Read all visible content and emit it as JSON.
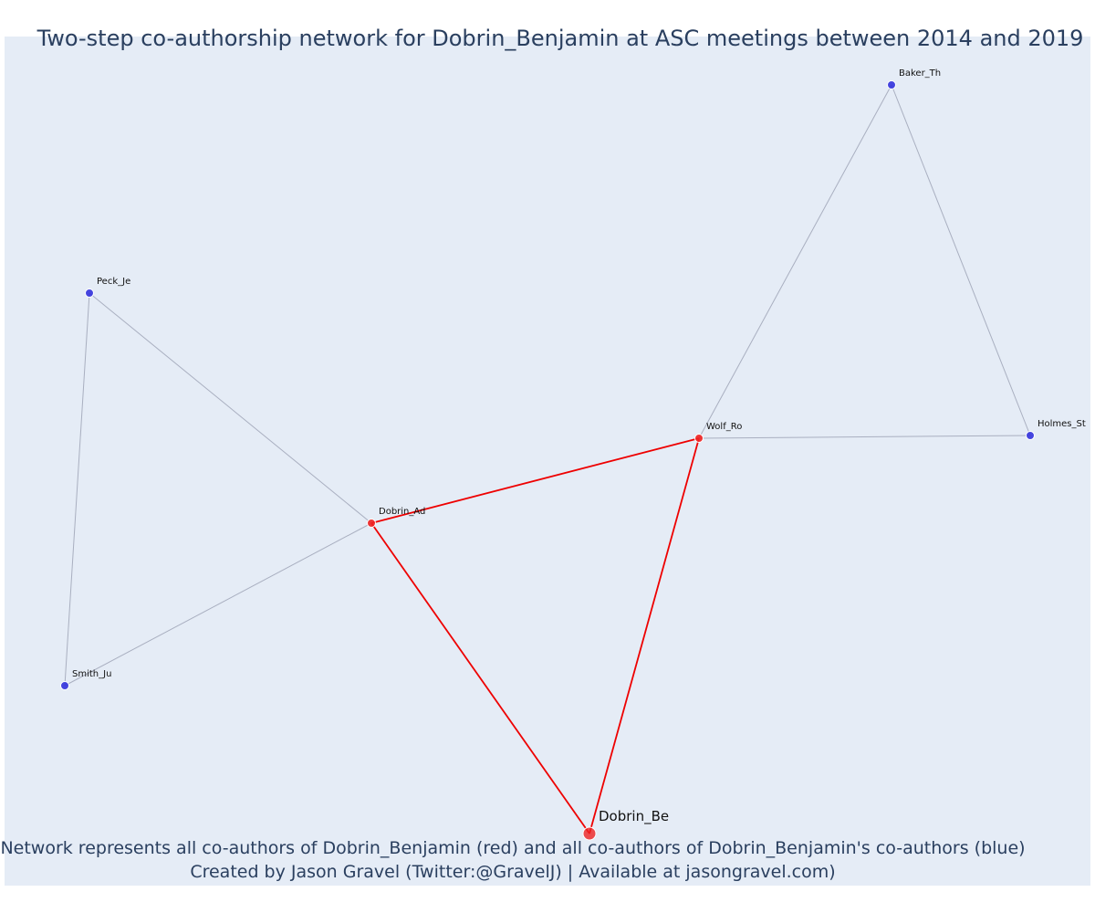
{
  "title": "Two-step co-authorship network for Dobrin_Benjamin at ASC meetings between 2014 and 2019",
  "annotations": {
    "line1": "Network represents all co-authors of Dobrin_Benjamin (red) and all co-authors of Dobrin_Benjamin's co-authors (blue)",
    "line2": "Created by Jason Gravel (Twitter:@GravelJ) | Available at jasongravel.com)"
  },
  "colors": {
    "background": "#e5ecf6",
    "title_text": "#2a3f5f",
    "red_node": "#ee2222",
    "blue_node": "#3333dd",
    "red_edge": "#ee0000",
    "gray_edge": "#a9afc0"
  },
  "nodes": [
    {
      "id": "Dobrin_Be",
      "label": "Dobrin_Be",
      "group": "focal"
    },
    {
      "id": "Dobrin_Ad",
      "label": "Dobrin_Ad",
      "group": "red"
    },
    {
      "id": "Wolf_Ro",
      "label": "Wolf_Ro",
      "group": "red"
    },
    {
      "id": "Baker_Th",
      "label": "Baker_Th",
      "group": "blue"
    },
    {
      "id": "Holmes_St",
      "label": "Holmes_St",
      "group": "blue"
    },
    {
      "id": "Peck_Je",
      "label": "Peck_Je",
      "group": "blue"
    },
    {
      "id": "Smith_Ju",
      "label": "Smith_Ju",
      "group": "blue"
    }
  ],
  "edges": [
    {
      "source": "Dobrin_Ad",
      "target": "Wolf_Ro",
      "type": "red"
    },
    {
      "source": "Dobrin_Ad",
      "target": "Dobrin_Be",
      "type": "red"
    },
    {
      "source": "Wolf_Ro",
      "target": "Dobrin_Be",
      "type": "red"
    },
    {
      "source": "Dobrin_Ad",
      "target": "Peck_Je",
      "type": "gray"
    },
    {
      "source": "Dobrin_Ad",
      "target": "Smith_Ju",
      "type": "gray"
    },
    {
      "source": "Peck_Je",
      "target": "Smith_Ju",
      "type": "gray"
    },
    {
      "source": "Wolf_Ro",
      "target": "Baker_Th",
      "type": "gray"
    },
    {
      "source": "Wolf_Ro",
      "target": "Holmes_St",
      "type": "gray"
    },
    {
      "source": "Baker_Th",
      "target": "Holmes_St",
      "type": "gray"
    }
  ]
}
